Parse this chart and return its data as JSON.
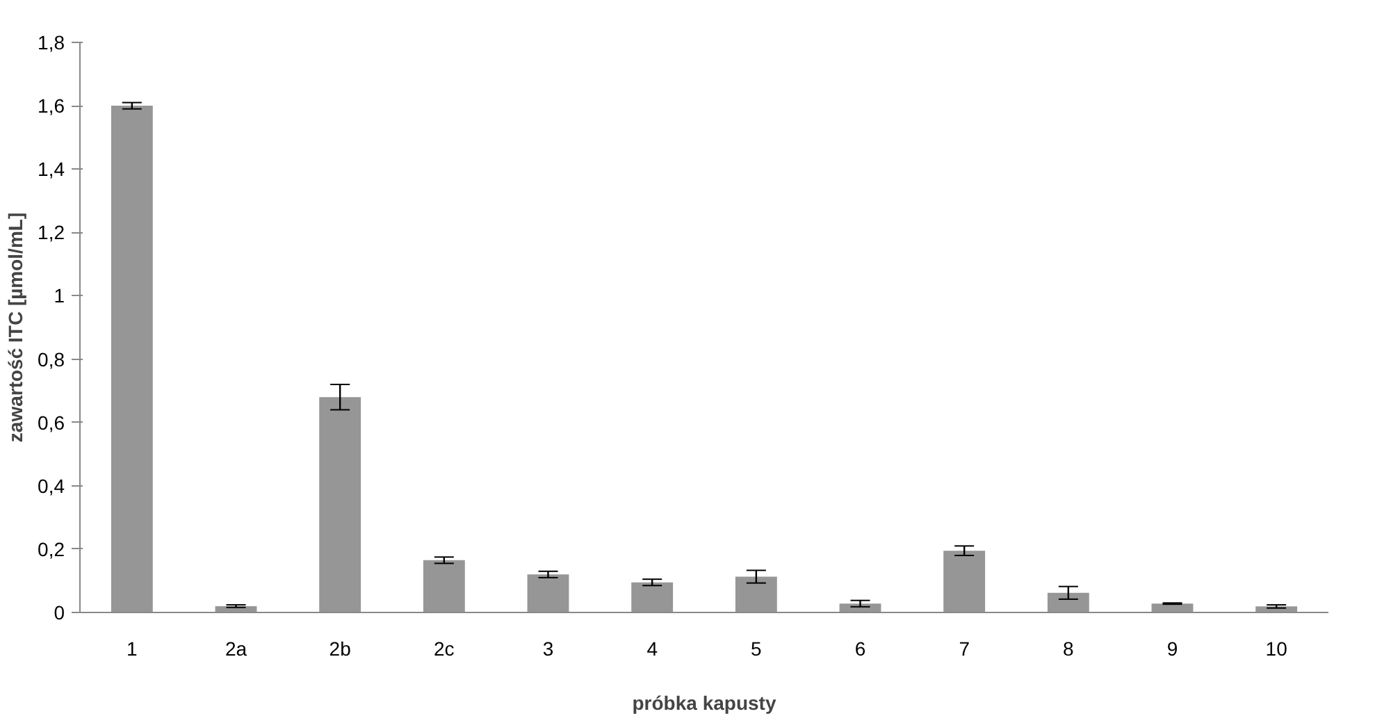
{
  "chart_data": {
    "type": "bar",
    "xlabel": "próbka kapusty",
    "ylabel": "zawartość ITC [µmol/mL]",
    "categories": [
      "1",
      "2a",
      "2b",
      "2c",
      "3",
      "4",
      "5",
      "6",
      "7",
      "8",
      "9",
      "10"
    ],
    "values": [
      1.6,
      0.02,
      0.68,
      0.165,
      0.12,
      0.095,
      0.113,
      0.028,
      0.195,
      0.062,
      0.028,
      0.019
    ],
    "errors": [
      0.01,
      0.004,
      0.04,
      0.01,
      0.01,
      0.01,
      0.02,
      0.01,
      0.015,
      0.02,
      0.002,
      0.005
    ],
    "color": "#969696",
    "ylim": [
      0,
      1.8
    ],
    "yticks": [
      0,
      {
        "value": 0.2,
        "label": "0,2"
      },
      {
        "value": 0.4,
        "label": "0,4"
      },
      {
        "value": 0.6,
        "label": "0,6"
      },
      {
        "value": 0.8,
        "label": "0,8"
      },
      1,
      {
        "value": 1.2,
        "label": "1,2"
      },
      {
        "value": 1.4,
        "label": "1,4"
      },
      {
        "value": 1.6,
        "label": "1,6"
      },
      {
        "value": 1.8,
        "label": "1,8"
      }
    ],
    "grid": false
  }
}
